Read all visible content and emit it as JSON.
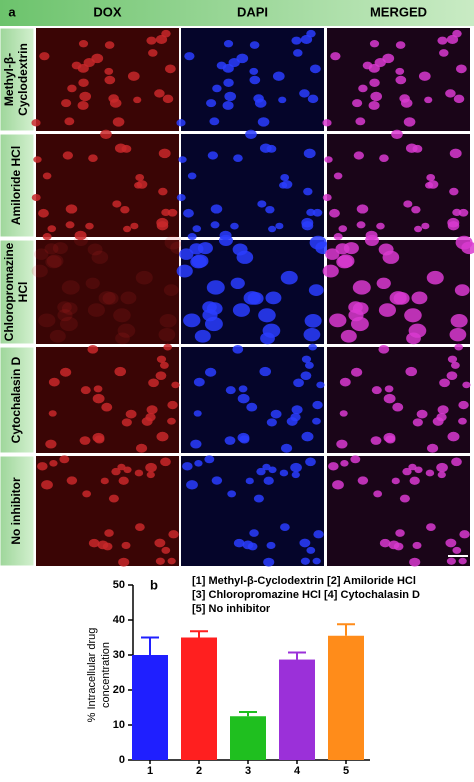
{
  "panel_a": {
    "label": "a",
    "columns": [
      "DOX",
      "DAPI",
      "MERGED"
    ],
    "rows": [
      [
        "Methyl-β-",
        "Cyclodextrin"
      ],
      [
        "Amiloride HCl"
      ],
      [
        "Chloropromazine",
        "HCl"
      ],
      [
        "Cytochalasin D"
      ],
      [
        "No inhibitor"
      ]
    ]
  },
  "chart_data": {
    "type": "bar",
    "panel_label": "b",
    "legend_text": [
      "[1] Methyl-β-Cyclodextrin [2] Amiloride HCl",
      "[3] Chloropromazine HCl  [4] Cytochalasin D",
      "[5] No inhibitor"
    ],
    "y_label": [
      "% Intracellular drug",
      "concentration"
    ],
    "categories": [
      "1",
      "2",
      "3",
      "4",
      "5"
    ],
    "values": [
      30,
      35,
      12.5,
      28.7,
      35.5
    ],
    "errors": [
      5,
      1.8,
      1.2,
      2,
      3.3
    ],
    "colors": [
      "#1f1fff",
      "#ff1f1f",
      "#1fbf1f",
      "#9b30d9",
      "#ff8c1a"
    ],
    "ylim": [
      0,
      50
    ],
    "yticks": [
      0,
      10,
      20,
      30,
      40,
      50
    ]
  }
}
